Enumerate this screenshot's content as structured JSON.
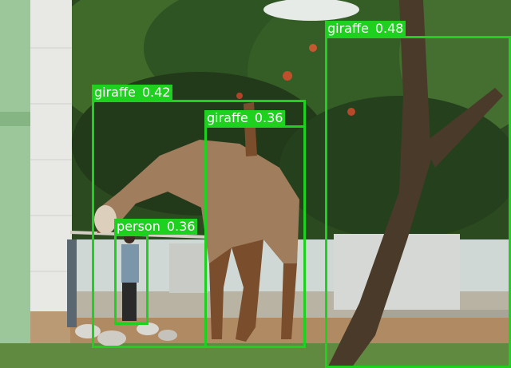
{
  "detections": [
    {
      "class": "giraffe",
      "confidence": "0.48"
    },
    {
      "class": "giraffe",
      "confidence": "0.42"
    },
    {
      "class": "giraffe",
      "confidence": "0.36"
    },
    {
      "class": "person",
      "confidence": "0.36"
    }
  ],
  "colors": {
    "box": "#1fd11f",
    "label_text": "#ffffff"
  }
}
